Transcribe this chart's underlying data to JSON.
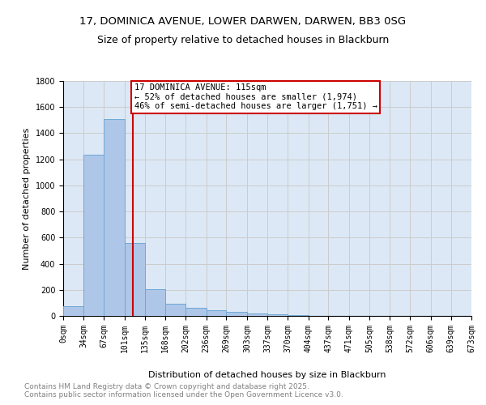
{
  "title_line1": "17, DOMINICA AVENUE, LOWER DARWEN, DARWEN, BB3 0SG",
  "title_line2": "Size of property relative to detached houses in Blackburn",
  "xlabel": "Distribution of detached houses by size in Blackburn",
  "ylabel": "Number of detached properties",
  "annotation_line1": "17 DOMINICA AVENUE: 115sqm",
  "annotation_line2": "← 52% of detached houses are smaller (1,974)",
  "annotation_line3": "46% of semi-detached houses are larger (1,751) →",
  "property_size": 115,
  "bins": [
    0,
    34,
    67,
    101,
    135,
    168,
    202,
    236,
    269,
    303,
    337,
    370,
    404,
    437,
    471,
    505,
    538,
    572,
    606,
    639,
    673
  ],
  "bin_labels": [
    "0sqm",
    "34sqm",
    "67sqm",
    "101sqm",
    "135sqm",
    "168sqm",
    "202sqm",
    "236sqm",
    "269sqm",
    "303sqm",
    "337sqm",
    "370sqm",
    "404sqm",
    "437sqm",
    "471sqm",
    "505sqm",
    "538sqm",
    "572sqm",
    "606sqm",
    "639sqm",
    "673sqm"
  ],
  "bar_heights": [
    75,
    1235,
    1510,
    560,
    205,
    95,
    65,
    45,
    30,
    20,
    10,
    5,
    3,
    2,
    1,
    1,
    0,
    0,
    0,
    0
  ],
  "bar_color": "#aec6e8",
  "bar_edgecolor": "#6fa8d4",
  "vline_color": "#cc0000",
  "vline_x": 115,
  "ylim": [
    0,
    1800
  ],
  "yticks": [
    0,
    200,
    400,
    600,
    800,
    1000,
    1200,
    1400,
    1600,
    1800
  ],
  "grid_color": "#cccccc",
  "bg_color": "#dce8f5",
  "box_edgecolor": "#cc0000",
  "footnote_line1": "Contains HM Land Registry data © Crown copyright and database right 2025.",
  "footnote_line2": "Contains public sector information licensed under the Open Government Licence v3.0.",
  "title_fontsize": 9.5,
  "axis_label_fontsize": 8,
  "tick_fontsize": 7,
  "annot_fontsize": 7.5,
  "footnote_fontsize": 6.5
}
